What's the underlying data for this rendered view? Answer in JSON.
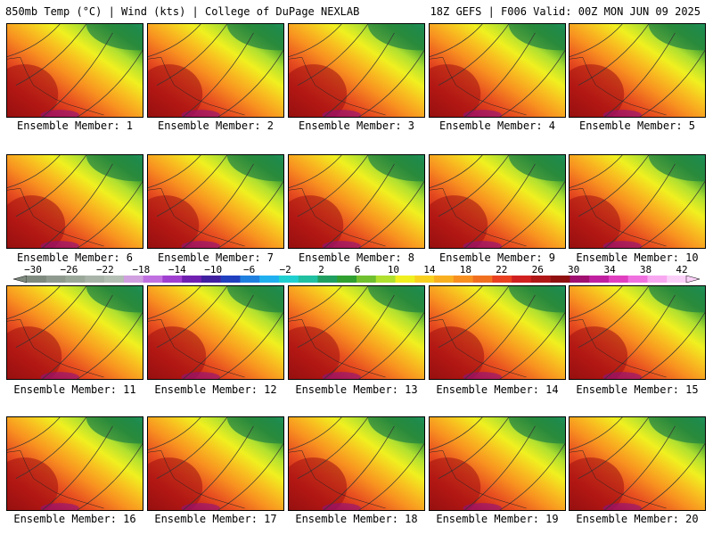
{
  "header": {
    "left": "850mb Temp (°C) | Wind (kts) | College of DuPage NEXLAB",
    "right": "18Z GEFS | F006 Valid: 00Z MON JUN 09 2025"
  },
  "panels": [
    {
      "label": "Ensemble Member: 1"
    },
    {
      "label": "Ensemble Member: 2"
    },
    {
      "label": "Ensemble Member: 3"
    },
    {
      "label": "Ensemble Member: 4"
    },
    {
      "label": "Ensemble Member: 5"
    },
    {
      "label": "Ensemble Member: 6"
    },
    {
      "label": "Ensemble Member: 7"
    },
    {
      "label": "Ensemble Member: 8"
    },
    {
      "label": "Ensemble Member: 9"
    },
    {
      "label": "Ensemble Member: 10"
    },
    {
      "label": "Ensemble Member: 11"
    },
    {
      "label": "Ensemble Member: 12"
    },
    {
      "label": "Ensemble Member: 13"
    },
    {
      "label": "Ensemble Member: 14"
    },
    {
      "label": "Ensemble Member: 15"
    },
    {
      "label": "Ensemble Member: 16"
    },
    {
      "label": "Ensemble Member: 17"
    },
    {
      "label": "Ensemble Member: 18"
    },
    {
      "label": "Ensemble Member: 19"
    },
    {
      "label": "Ensemble Member: 20"
    }
  ],
  "colorbar": {
    "tick_labels": [
      "−30",
      "−26",
      "−22",
      "−18",
      "−14",
      "−10",
      "−6",
      "−2",
      "2",
      "6",
      "10",
      "14",
      "18",
      "22",
      "26",
      "30",
      "34",
      "38",
      "42"
    ],
    "colors": [
      "#7f8a7f",
      "#8f9a8f",
      "#9aa89a",
      "#a8b4a8",
      "#b4c0b4",
      "#d0a0e0",
      "#c070e0",
      "#a040d0",
      "#7020b0",
      "#4020a0",
      "#2040c0",
      "#2080e0",
      "#20b0f0",
      "#20d0d0",
      "#20c0a0",
      "#20a060",
      "#30a030",
      "#70c030",
      "#b0e030",
      "#f0f020",
      "#f8d020",
      "#f8b020",
      "#f89020",
      "#f07020",
      "#e84020",
      "#d02020",
      "#b01818",
      "#901010",
      "#a01070",
      "#c020a0",
      "#e040c0",
      "#f070e0",
      "#f8a8f0",
      "#fad0f8"
    ]
  }
}
